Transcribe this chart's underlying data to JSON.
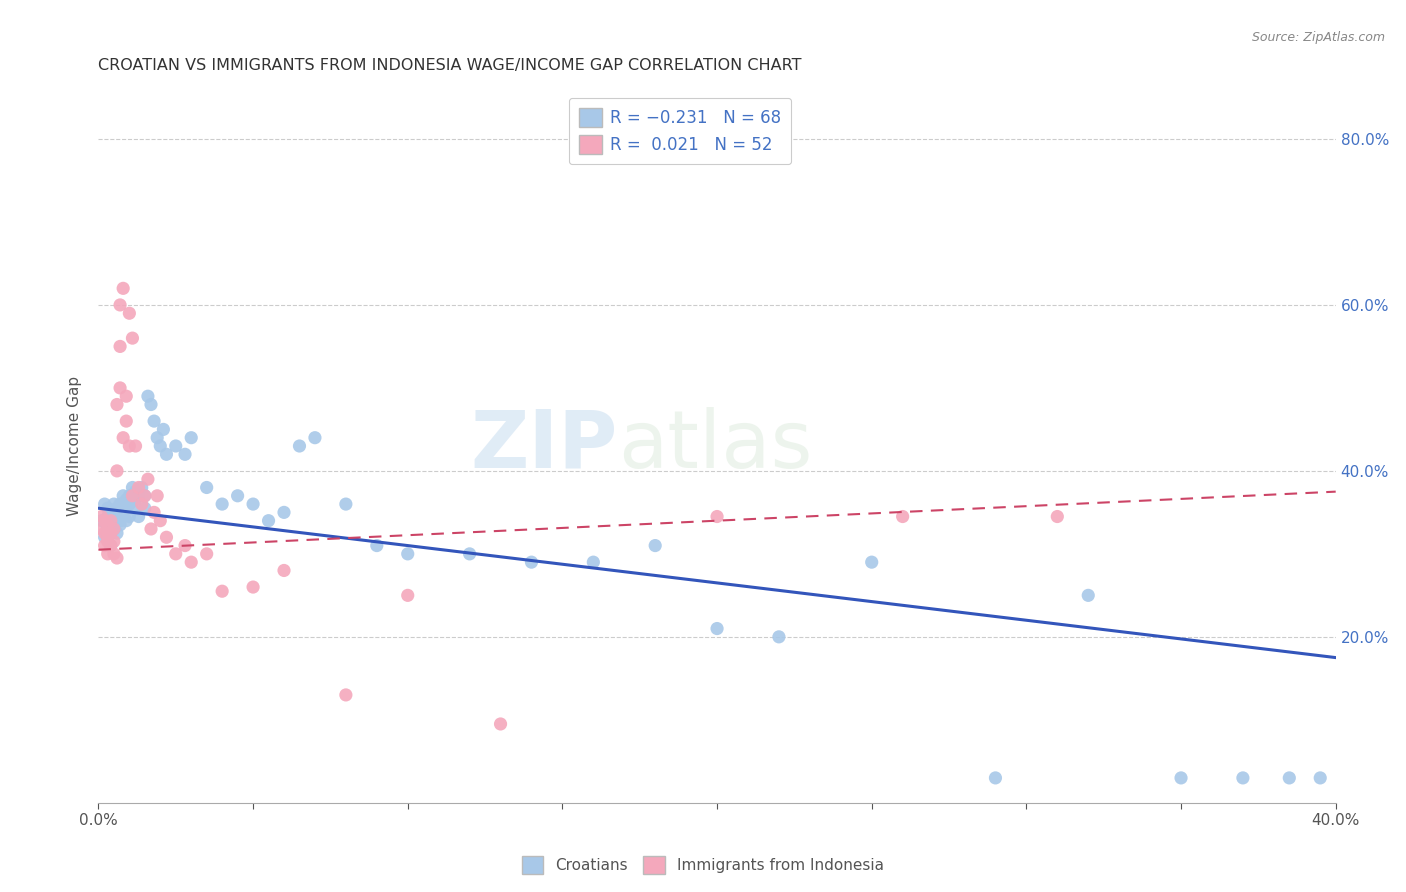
{
  "title": "CROATIAN VS IMMIGRANTS FROM INDONESIA WAGE/INCOME GAP CORRELATION CHART",
  "source": "Source: ZipAtlas.com",
  "ylabel": "Wage/Income Gap",
  "watermark": "ZIPatlas",
  "croatians_color": "#a8c8e8",
  "indonesians_color": "#f4a8bc",
  "trendline_croatians_color": "#3355bb",
  "trendline_indonesians_color": "#cc4466",
  "axis_label_color": "#4472c4",
  "right_axis_color": "#4472c4",
  "xlim": [
    0.0,
    0.4
  ],
  "ylim": [
    0.0,
    0.86
  ],
  "right_yticks": [
    0.2,
    0.4,
    0.6,
    0.8
  ],
  "right_yticklabels": [
    "20.0%",
    "40.0%",
    "60.0%",
    "80.0%"
  ],
  "xtick_positions": [
    0.0,
    0.05,
    0.1,
    0.15,
    0.2,
    0.25,
    0.3,
    0.35,
    0.4
  ],
  "croatians_x": [
    0.001,
    0.002,
    0.002,
    0.003,
    0.003,
    0.003,
    0.004,
    0.004,
    0.004,
    0.005,
    0.005,
    0.005,
    0.006,
    0.006,
    0.006,
    0.007,
    0.007,
    0.007,
    0.008,
    0.008,
    0.009,
    0.009,
    0.01,
    0.01,
    0.01,
    0.011,
    0.011,
    0.012,
    0.012,
    0.013,
    0.013,
    0.014,
    0.015,
    0.015,
    0.016,
    0.017,
    0.018,
    0.019,
    0.02,
    0.021,
    0.022,
    0.025,
    0.028,
    0.03,
    0.035,
    0.04,
    0.045,
    0.05,
    0.055,
    0.06,
    0.065,
    0.07,
    0.08,
    0.09,
    0.1,
    0.12,
    0.14,
    0.16,
    0.18,
    0.2,
    0.22,
    0.25,
    0.29,
    0.32,
    0.35,
    0.37,
    0.385,
    0.395
  ],
  "croatians_y": [
    0.34,
    0.32,
    0.36,
    0.33,
    0.345,
    0.355,
    0.31,
    0.34,
    0.325,
    0.35,
    0.33,
    0.36,
    0.325,
    0.345,
    0.355,
    0.335,
    0.36,
    0.34,
    0.37,
    0.35,
    0.34,
    0.365,
    0.345,
    0.36,
    0.37,
    0.355,
    0.38,
    0.365,
    0.375,
    0.345,
    0.37,
    0.38,
    0.355,
    0.37,
    0.49,
    0.48,
    0.46,
    0.44,
    0.43,
    0.45,
    0.42,
    0.43,
    0.42,
    0.44,
    0.38,
    0.36,
    0.37,
    0.36,
    0.34,
    0.35,
    0.43,
    0.44,
    0.36,
    0.31,
    0.3,
    0.3,
    0.29,
    0.29,
    0.31,
    0.21,
    0.2,
    0.29,
    0.03,
    0.25,
    0.03,
    0.03,
    0.03,
    0.03
  ],
  "indonesians_x": [
    0.001,
    0.001,
    0.002,
    0.002,
    0.002,
    0.003,
    0.003,
    0.003,
    0.003,
    0.004,
    0.004,
    0.004,
    0.005,
    0.005,
    0.005,
    0.006,
    0.006,
    0.006,
    0.007,
    0.007,
    0.007,
    0.008,
    0.008,
    0.009,
    0.009,
    0.01,
    0.01,
    0.011,
    0.011,
    0.012,
    0.013,
    0.014,
    0.015,
    0.016,
    0.017,
    0.018,
    0.019,
    0.02,
    0.022,
    0.025,
    0.028,
    0.03,
    0.035,
    0.04,
    0.05,
    0.06,
    0.08,
    0.1,
    0.13,
    0.2,
    0.26,
    0.31
  ],
  "indonesians_y": [
    0.345,
    0.33,
    0.31,
    0.325,
    0.34,
    0.3,
    0.32,
    0.335,
    0.315,
    0.31,
    0.325,
    0.34,
    0.3,
    0.315,
    0.33,
    0.295,
    0.4,
    0.48,
    0.5,
    0.55,
    0.6,
    0.44,
    0.62,
    0.46,
    0.49,
    0.59,
    0.43,
    0.56,
    0.37,
    0.43,
    0.38,
    0.36,
    0.37,
    0.39,
    0.33,
    0.35,
    0.37,
    0.34,
    0.32,
    0.3,
    0.31,
    0.29,
    0.3,
    0.255,
    0.26,
    0.28,
    0.13,
    0.25,
    0.095,
    0.345,
    0.345,
    0.345
  ],
  "trendline_cr_x0": 0.0,
  "trendline_cr_y0": 0.355,
  "trendline_cr_x1": 0.4,
  "trendline_cr_y1": 0.175,
  "trendline_id_x0": 0.0,
  "trendline_id_y0": 0.305,
  "trendline_id_x1": 0.4,
  "trendline_id_y1": 0.375
}
